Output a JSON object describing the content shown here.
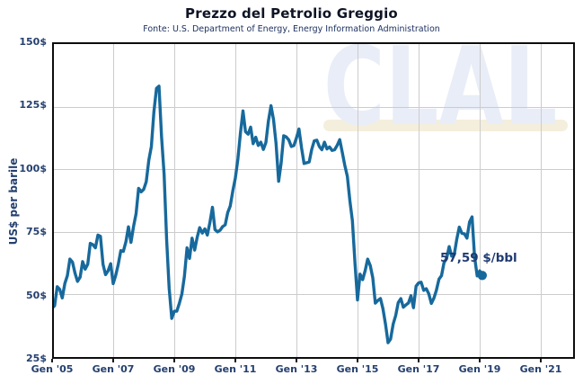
{
  "header": {
    "title": "Prezzo del Petrolio Greggio",
    "subtitle": "Fonte: U.S. Department of Energy, Energy Information Administration"
  },
  "watermark": {
    "text": "CLAL"
  },
  "colors": {
    "line": "#17699c",
    "marker": "#17699c",
    "axis_text": "#25406f",
    "grid": "#cccccc",
    "frame": "#0d0d0d",
    "watermark": "#e9edf7",
    "watermark_underline": "#f4eedc",
    "annotation_text": "#1f3a70"
  },
  "chart_data": {
    "type": "line",
    "title": "Prezzo del Petrolio Greggio",
    "subtitle": "Fonte: U.S. Department of Energy, Energy Information Administration",
    "xlabel": "",
    "ylabel": "US$ per barile",
    "ylim": [
      25,
      150
    ],
    "x_start": "Gen 2005",
    "x_end": "Feb 2019",
    "frequency": "monthly",
    "grid": true,
    "legend": "none",
    "last_value_label": "57,59 $/bbl",
    "last_value": 57.59,
    "y_ticks": [
      {
        "v": 150,
        "label": "150$"
      },
      {
        "v": 125,
        "label": "125$"
      },
      {
        "v": 100,
        "label": "100$"
      },
      {
        "v": 75,
        "label": "75$"
      },
      {
        "v": 50,
        "label": "50$"
      },
      {
        "v": 25,
        "label": "25$"
      }
    ],
    "x_ticks": [
      {
        "year": 2005,
        "label": "Gen '05"
      },
      {
        "year": 2007,
        "label": "Gen '07"
      },
      {
        "year": 2009,
        "label": "Gen '09"
      },
      {
        "year": 2011,
        "label": "Gen '11"
      },
      {
        "year": 2013,
        "label": "Gen '13"
      },
      {
        "year": 2015,
        "label": "Gen '15"
      },
      {
        "year": 2017,
        "label": "Gen '17"
      },
      {
        "year": 2019,
        "label": "Gen '19"
      },
      {
        "year": 2021,
        "label": "Gen '21"
      }
    ],
    "x_axis_span_years": [
      2005,
      2022.1
    ],
    "series": [
      {
        "name": "Prezzo petrolio greggio (US$/bbl)",
        "values": [
          44.5,
          45.5,
          53.1,
          52.0,
          48.6,
          54.4,
          57.5,
          64.1,
          62.9,
          58.5,
          55.2,
          56.9,
          63.1,
          60.1,
          62.1,
          70.4,
          69.9,
          68.6,
          73.7,
          73.2,
          62.0,
          57.9,
          59.4,
          62.3,
          54.3,
          57.6,
          62.1,
          67.5,
          67.2,
          71.1,
          77.0,
          70.8,
          77.2,
          82.3,
          92.4,
          91.0,
          92.0,
          95.0,
          103.7,
          109.1,
          122.8,
          132.3,
          133.2,
          113.2,
          97.9,
          71.9,
          52.5,
          40.4,
          43.3,
          43.3,
          46.5,
          50.2,
          57.3,
          68.6,
          64.4,
          72.5,
          67.7,
          72.8,
          76.7,
          74.5,
          76.2,
          73.7,
          78.8,
          84.8,
          75.9,
          75.0,
          75.6,
          77.1,
          77.8,
          82.7,
          85.3,
          91.4,
          96.5,
          104.0,
          114.6,
          123.3,
          115.0,
          114.0,
          116.8,
          110.2,
          112.8,
          109.5,
          110.8,
          107.9,
          110.7,
          119.3,
          125.4,
          119.8,
          110.3,
          95.2,
          102.6,
          113.4,
          112.9,
          111.7,
          109.1,
          109.5,
          112.5,
          116.1,
          108.5,
          102.3,
          102.6,
          102.9,
          107.9,
          111.3,
          111.6,
          109.1,
          107.8,
          110.8,
          108.1,
          108.9,
          107.5,
          107.8,
          109.5,
          111.8,
          106.8,
          101.6,
          97.1,
          87.4,
          79.4,
          62.3,
          47.8,
          58.1,
          55.9,
          59.5,
          64.1,
          61.5,
          56.6,
          46.5,
          47.6,
          48.4,
          44.3,
          38.0,
          30.7,
          32.2,
          38.2,
          41.6,
          46.7,
          48.3,
          44.9,
          45.8,
          46.6,
          49.5,
          44.7,
          53.3,
          54.6,
          54.9,
          51.6,
          52.3,
          50.3,
          46.4,
          48.5,
          51.7,
          56.1,
          57.5,
          62.7,
          64.4,
          69.1,
          65.3,
          66.0,
          72.1,
          76.9,
          74.4,
          74.2,
          72.5,
          78.9,
          81.0,
          65.0,
          57.4,
          59.4,
          57.59
        ]
      }
    ]
  }
}
